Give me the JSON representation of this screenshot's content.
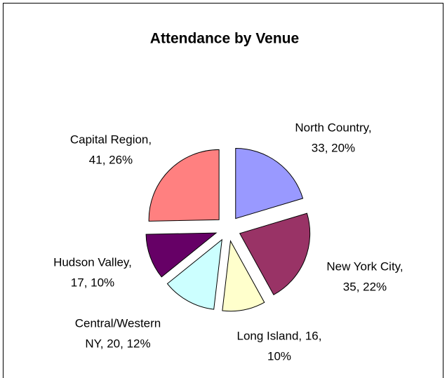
{
  "chart_data": {
    "type": "pie",
    "title": "Attendance by Venue",
    "categories": [
      "North Country",
      "New York City",
      "Long Island",
      "Central/Western NY",
      "Hudson Valley",
      "Capital Region"
    ],
    "values": [
      33,
      35,
      16,
      20,
      17,
      41
    ],
    "value_labels": [
      [
        "North Country,",
        "33, 20%"
      ],
      [
        "New York City,",
        "35, 22%"
      ],
      [
        "Long Island, 16,",
        "10%"
      ],
      [
        "Central/Western",
        "NY, 20, 12%"
      ],
      [
        "Hudson Valley,",
        "17, 10%"
      ],
      [
        "Capital Region,",
        "41, 26%"
      ]
    ],
    "colors": [
      "#9999ff",
      "#993366",
      "#ffffcc",
      "#ccffff",
      "#660066",
      "#ff8080"
    ],
    "exploded": true
  }
}
